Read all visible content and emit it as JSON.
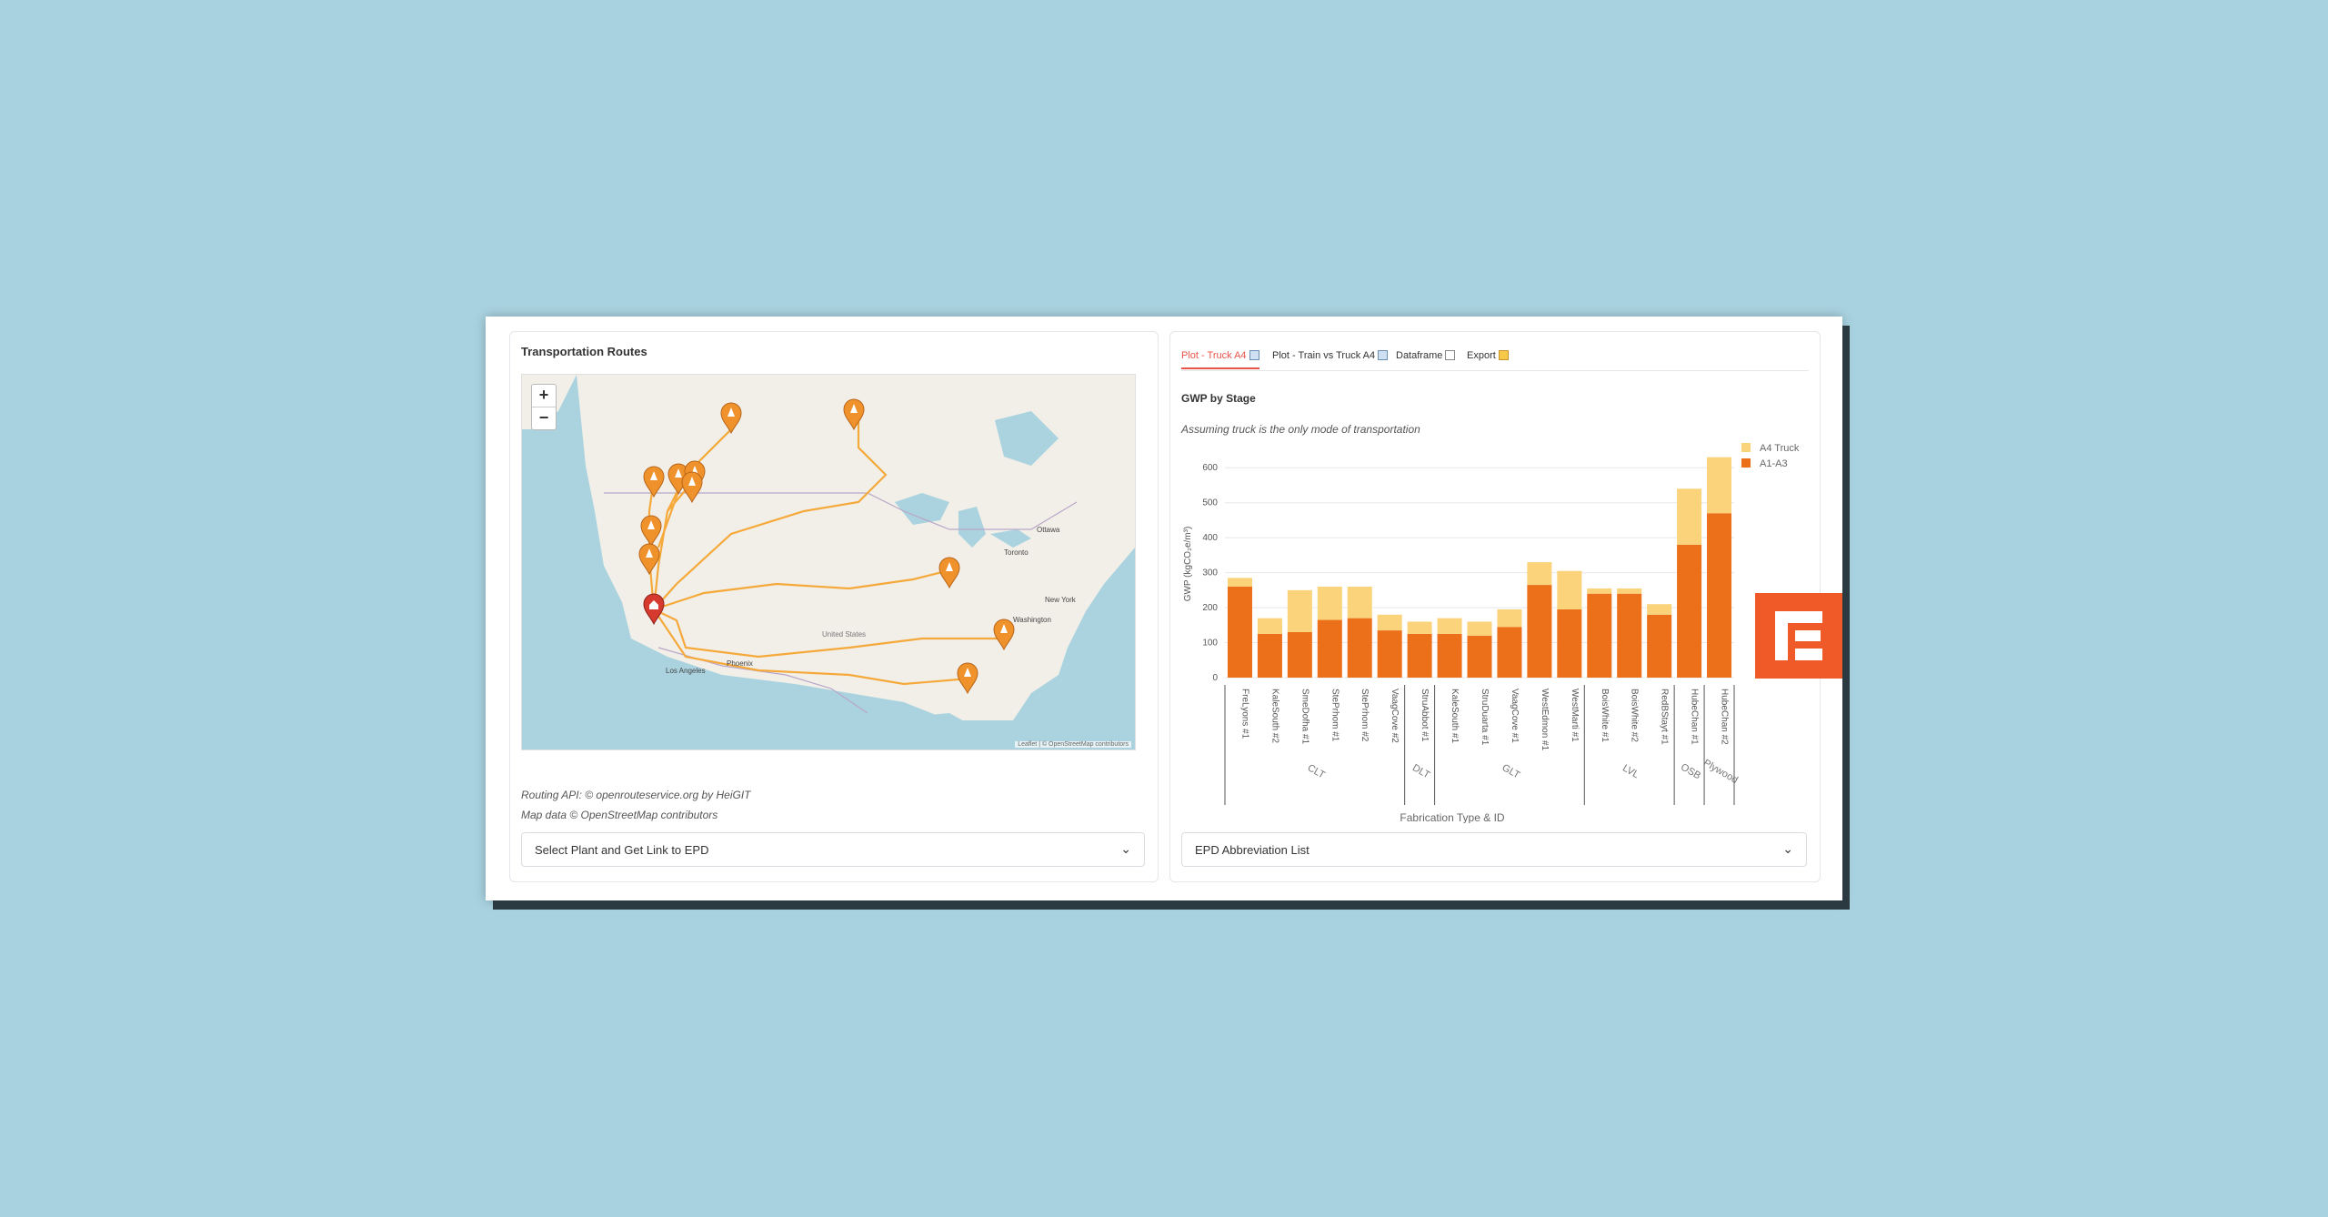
{
  "left_panel": {
    "title": "Transportation Routes",
    "zoom_in": "+",
    "zoom_out": "−",
    "map_labels": {
      "ottawa": "Ottawa",
      "toronto": "Toronto",
      "new_york": "New York",
      "washington": "Washington",
      "united_states": "United States",
      "los_angeles": "Los Angeles",
      "phoenix": "Phoenix"
    },
    "map_attribution": "Leaflet | © OpenStreetMap contributors",
    "credit_1": "Routing API: © openrouteservice.org by HeiGIT",
    "credit_2": "Map data © OpenStreetMap contributors",
    "select_label": "Select Plant and Get Link to EPD"
  },
  "right_panel": {
    "tabs": [
      {
        "label": "Plot - Truck A4",
        "icon": "bar-chart-icon"
      },
      {
        "label": "Plot - Train vs Truck A4",
        "icon": "bar-chart-icon"
      },
      {
        "label": "Dataframe",
        "icon": "document-icon"
      },
      {
        "label": "Export",
        "icon": "folder-icon"
      }
    ],
    "active_tab": 0,
    "subheading": "GWP by Stage",
    "note": "Assuming truck is the only mode of transportation",
    "select_label": "EPD Abbreviation List"
  },
  "colors": {
    "a1a3": "#ec6f1a",
    "a4_truck": "#fbd37a",
    "tab_active": "#e8534a",
    "route": "#f5a93a",
    "marker": "#f0922b",
    "home_marker": "#d63a2f",
    "logo": "#f05a28"
  },
  "chart_data": {
    "type": "bar",
    "stacked": true,
    "xlabel": "Fabrication Type & ID",
    "ylabel": "GWP (kgCO₂e/m³)",
    "ylim": [
      0,
      650
    ],
    "yticks": [
      0,
      100,
      200,
      300,
      400,
      500,
      600
    ],
    "legend_position": "top-right",
    "categories": [
      "FreLyons #1",
      "KaleSouth #2",
      "SmeDofha #1",
      "StePrhom #1",
      "StePrhom #2",
      "VaagCove #2",
      "StruAbbot #1",
      "KaleSouth #1",
      "StruDuarta #1",
      "VaagCove #1",
      "WestEdmon #1",
      "WestMarti #1",
      "BoisWhite #1",
      "BoisWhite #2",
      "RedBStayt #1",
      "HubeChan #1",
      "HubeChan #2"
    ],
    "groups": [
      {
        "name": "CLT",
        "start": 0,
        "end": 5
      },
      {
        "name": "DLT",
        "start": 6,
        "end": 6
      },
      {
        "name": "GLT",
        "start": 7,
        "end": 11
      },
      {
        "name": "LVL",
        "start": 12,
        "end": 14
      },
      {
        "name": "OSB",
        "start": 15,
        "end": 15
      },
      {
        "name": "Plywood",
        "start": 16,
        "end": 16
      }
    ],
    "series": [
      {
        "name": "A1-A3",
        "values": [
          260,
          125,
          130,
          165,
          170,
          135,
          125,
          125,
          120,
          145,
          265,
          195,
          240,
          240,
          180,
          380,
          470
        ]
      },
      {
        "name": "A4 Truck",
        "values": [
          25,
          45,
          120,
          95,
          90,
          45,
          35,
          45,
          40,
          50,
          65,
          110,
          15,
          15,
          30,
          160,
          160
        ]
      }
    ],
    "legend": [
      "A4 Truck",
      "A1-A3"
    ]
  }
}
